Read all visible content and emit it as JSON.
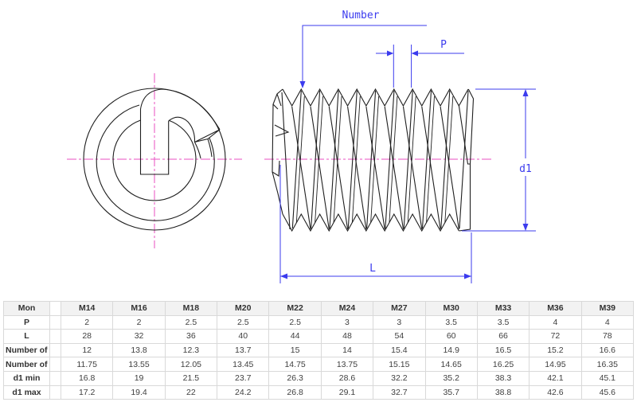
{
  "drawing": {
    "labels": {
      "number": "Number",
      "pitch": "P",
      "diameter": "d1",
      "length": "L"
    },
    "colors": {
      "outline": "#1f1f1f",
      "dimension": "#3b3bee",
      "centerline": "#ea4fc0"
    }
  },
  "table": {
    "columns": [
      "Mon",
      "M14",
      "M16",
      "M18",
      "M20",
      "M22",
      "M24",
      "M27",
      "M30",
      "M33",
      "M36",
      "M39"
    ],
    "rows": [
      {
        "label": "P",
        "values": [
          "2",
          "2",
          "2.5",
          "2.5",
          "2.5",
          "3",
          "3",
          "3.5",
          "3.5",
          "4",
          "4"
        ]
      },
      {
        "label": "L",
        "values": [
          "28",
          "32",
          "36",
          "40",
          "44",
          "48",
          "54",
          "60",
          "66",
          "72",
          "78"
        ]
      },
      {
        "label": "Number of t...",
        "values": [
          "12",
          "13.8",
          "12.3",
          "13.7",
          "15",
          "14",
          "15.4",
          "14.9",
          "16.5",
          "15.2",
          "16.6"
        ]
      },
      {
        "label": "Number of t...",
        "values": [
          "11.75",
          "13.55",
          "12.05",
          "13.45",
          "14.75",
          "13.75",
          "15.15",
          "14.65",
          "16.25",
          "14.95",
          "16.35"
        ]
      },
      {
        "label": "d1 min",
        "values": [
          "16.8",
          "19",
          "21.5",
          "23.7",
          "26.3",
          "28.6",
          "32.2",
          "35.2",
          "38.3",
          "42.1",
          "45.1"
        ]
      },
      {
        "label": "d1 max",
        "values": [
          "17.2",
          "19.4",
          "22",
          "24.2",
          "26.8",
          "29.1",
          "32.7",
          "35.7",
          "38.8",
          "42.6",
          "45.6"
        ]
      }
    ]
  }
}
